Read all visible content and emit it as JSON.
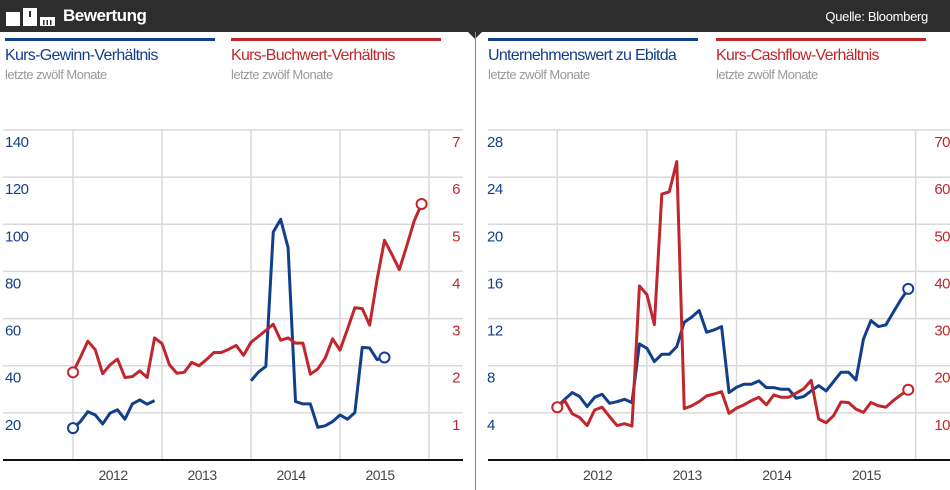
{
  "header": {
    "title": "Bewertung",
    "source": "Quelle: Bloomberg",
    "logo_icon": "bar-chart-blocks-icon"
  },
  "colors": {
    "blue": "#123f8c",
    "red": "#c0272d",
    "header_bg": "#2d2d2d",
    "grid": "#d9d9d9",
    "subtitle": "#999999"
  },
  "chart_data": [
    {
      "type": "line",
      "x_labels": [
        "2012",
        "2013",
        "2014",
        "2015"
      ],
      "start": "2012-01",
      "frequency": "monthly",
      "left_axis": {
        "ticks": [
          20,
          40,
          60,
          80,
          100,
          120,
          140
        ],
        "range": [
          0,
          140
        ],
        "color": "#123f8c"
      },
      "right_axis": {
        "ticks": [
          1,
          2,
          3,
          4,
          5,
          6,
          7
        ],
        "range": [
          0,
          7
        ],
        "color": "#c0272d"
      },
      "grid": true,
      "series": [
        {
          "name": "Kurs-Gewinn-Verhältnis",
          "subtitle": "letzte zwölf Monate",
          "axis": "left",
          "color": "#123f8c",
          "markers": [
            "first",
            "last"
          ],
          "values": [
            13.5,
            16.3,
            20.5,
            19.1,
            15.3,
            19.9,
            21.3,
            17.3,
            23.8,
            25.5,
            23.7,
            25.2,
            null,
            null,
            null,
            null,
            null,
            null,
            null,
            null,
            null,
            null,
            null,
            null,
            33.6,
            37.3,
            39.7,
            96.7,
            102.1,
            90.1,
            24.8,
            23.8,
            23.8,
            13.9,
            14.5,
            16.3,
            19.1,
            17.3,
            20.1,
            47.8,
            47.5,
            42.6,
            43.5
          ]
        },
        {
          "name": "Kurs-Buchwert-Verhältnis",
          "subtitle": "letzte zwölf Monate",
          "axis": "right",
          "color": "#c0272d",
          "markers": [
            "first",
            "last"
          ],
          "values": [
            1.86,
            2.18,
            2.52,
            2.34,
            1.83,
            2.02,
            2.14,
            1.75,
            1.77,
            1.89,
            1.75,
            2.59,
            2.47,
            2.02,
            1.84,
            1.86,
            2.07,
            2.0,
            2.13,
            2.28,
            2.28,
            2.35,
            2.43,
            2.22,
            2.5,
            2.62,
            2.75,
            2.88,
            2.54,
            2.59,
            2.48,
            2.48,
            1.82,
            1.93,
            2.16,
            2.57,
            2.33,
            2.77,
            3.23,
            3.21,
            2.86,
            3.83,
            4.66,
            4.36,
            4.04,
            4.54,
            5.07,
            5.43
          ]
        }
      ]
    },
    {
      "type": "line",
      "x_labels": [
        "2012",
        "2013",
        "2014",
        "2015"
      ],
      "start": "2012-01",
      "frequency": "monthly",
      "left_axis": {
        "ticks": [
          4,
          8,
          12,
          16,
          20,
          24,
          28
        ],
        "range": [
          0,
          28
        ],
        "color": "#123f8c"
      },
      "right_axis": {
        "ticks": [
          10,
          20,
          30,
          40,
          50,
          60,
          70
        ],
        "range": [
          0,
          70
        ],
        "color": "#c0272d"
      },
      "grid": true,
      "series": [
        {
          "name": "Unternehmenswert zu Ebitda",
          "subtitle": "letzte zwölf Monate",
          "axis": "left",
          "color": "#123f8c",
          "markers": [
            "last"
          ],
          "values": [
            4.53,
            5.15,
            5.72,
            5.38,
            4.53,
            5.32,
            5.58,
            4.81,
            4.95,
            5.15,
            4.87,
            9.85,
            9.48,
            8.35,
            8.97,
            8.97,
            9.62,
            11.69,
            12.12,
            12.68,
            10.84,
            11.04,
            11.32,
            5.72,
            6.17,
            6.43,
            6.43,
            6.71,
            6.14,
            6.14,
            6.0,
            6.0,
            5.24,
            5.38,
            5.86,
            6.31,
            5.86,
            6.65,
            7.45,
            7.45,
            6.79,
            10.25,
            11.83,
            11.32,
            11.46,
            12.54,
            13.59,
            14.52
          ]
        },
        {
          "name": "Kurs-Cashflow-Verhältnis",
          "subtitle": "letzte zwölf Monate",
          "axis": "right",
          "color": "#c0272d",
          "markers": [
            "first",
            "last"
          ],
          "values": [
            11.2,
            12.6,
            9.8,
            9.0,
            7.3,
            10.6,
            11.2,
            9.2,
            7.3,
            7.7,
            7.2,
            36.9,
            35.1,
            28.7,
            56.4,
            56.9,
            63.3,
            10.9,
            11.5,
            12.4,
            13.6,
            14.0,
            14.5,
            9.9,
            11.0,
            11.7,
            12.6,
            13.3,
            11.7,
            13.8,
            13.3,
            13.3,
            14.2,
            15.1,
            16.9,
            8.7,
            7.9,
            9.4,
            12.3,
            12.2,
            10.8,
            10.1,
            12.2,
            11.5,
            11.2,
            12.6,
            13.8,
            14.9
          ]
        }
      ]
    }
  ]
}
